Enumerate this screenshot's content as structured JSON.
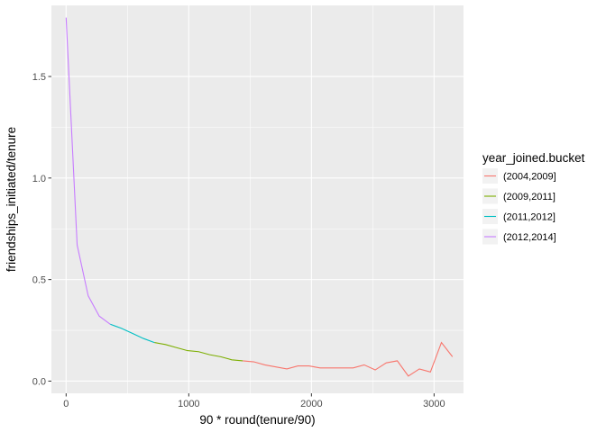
{
  "chart_data": {
    "type": "line",
    "title": "",
    "xlabel": "90 * round(tenure/90)",
    "ylabel": "friendships_initiated/tenure",
    "xlim": [
      -120,
      3240
    ],
    "ylim": [
      -0.06,
      1.85
    ],
    "x_ticks": [
      0,
      1000,
      2000,
      3000
    ],
    "x_tick_labels": [
      "0",
      "1000",
      "2000",
      "3000"
    ],
    "y_ticks": [
      0.0,
      0.5,
      1.0,
      1.5
    ],
    "y_tick_labels": [
      "0.0",
      "0.5",
      "1.0",
      "1.5"
    ],
    "grid": true,
    "legend": {
      "title": "year_joined.bucket",
      "placement": "right"
    },
    "series": [
      {
        "name": "(2004,2009]",
        "color": "#F8766D",
        "x": [
          1440,
          1530,
          1620,
          1710,
          1800,
          1890,
          1980,
          2070,
          2160,
          2250,
          2340,
          2430,
          2520,
          2610,
          2700,
          2790,
          2880,
          2970,
          3060,
          3150
        ],
        "y": [
          0.1,
          0.095,
          0.08,
          0.07,
          0.06,
          0.075,
          0.075,
          0.065,
          0.065,
          0.065,
          0.065,
          0.08,
          0.055,
          0.09,
          0.1,
          0.025,
          0.06,
          0.045,
          0.19,
          0.12
        ]
      },
      {
        "name": "(2009,2011]",
        "color": "#7CAE00",
        "x": [
          720,
          810,
          900,
          990,
          1080,
          1170,
          1260,
          1350,
          1440
        ],
        "y": [
          0.19,
          0.18,
          0.165,
          0.15,
          0.145,
          0.13,
          0.12,
          0.105,
          0.1
        ]
      },
      {
        "name": "(2011,2012]",
        "color": "#00BFC4",
        "x": [
          360,
          450,
          540,
          630,
          720
        ],
        "y": [
          0.28,
          0.26,
          0.235,
          0.21,
          0.19
        ]
      },
      {
        "name": "(2012,2014]",
        "color": "#C77CFF",
        "x": [
          0,
          90,
          180,
          270,
          360
        ],
        "y": [
          1.79,
          0.67,
          0.42,
          0.32,
          0.28
        ]
      }
    ]
  }
}
